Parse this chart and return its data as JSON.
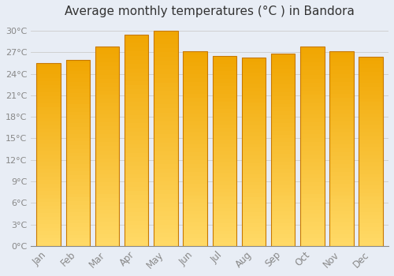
{
  "title": "Average monthly temperatures (°C ) in Bandora",
  "months": [
    "Jan",
    "Feb",
    "Mar",
    "Apr",
    "May",
    "Jun",
    "Jul",
    "Aug",
    "Sep",
    "Oct",
    "Nov",
    "Dec"
  ],
  "temperatures": [
    25.5,
    26.0,
    27.8,
    29.5,
    30.0,
    27.2,
    26.5,
    26.3,
    26.8,
    27.8,
    27.2,
    26.4
  ],
  "bar_color_top": "#FFD966",
  "bar_color_bottom": "#F0A500",
  "bar_edge_color": "#C87800",
  "background_color": "#E8EDF5",
  "plot_bg_color": "#E8EDF5",
  "grid_color": "#CCCCCC",
  "ytick_interval": 3,
  "ymax": 31,
  "title_fontsize": 11,
  "tick_label_color": "#888888",
  "title_color": "#333333",
  "bar_width": 0.82
}
